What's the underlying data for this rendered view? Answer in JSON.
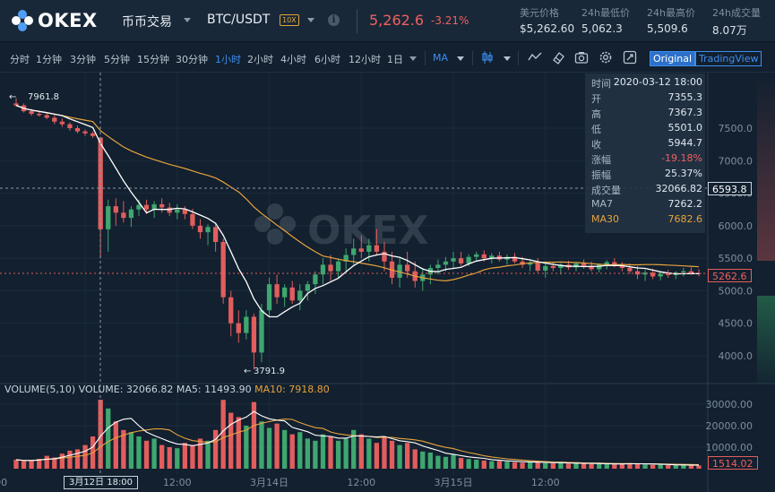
{
  "header": {
    "logo_text": "OKEX",
    "mode": "币币交易",
    "pair": "BTC/USDT",
    "leverage": "10X",
    "last_price": "5,262.6",
    "change_pct": "-3.21%",
    "stats": [
      {
        "label": "美元价格",
        "value": "$5,262.60"
      },
      {
        "label": "24h最低价",
        "value": "5,062.3"
      },
      {
        "label": "24h最高价",
        "value": "5,509.6"
      },
      {
        "label": "24h成交量",
        "value": "8.07万"
      }
    ]
  },
  "toolbar": {
    "timeframes": [
      "分时",
      "1分钟",
      "3分钟",
      "5分钟",
      "15分钟",
      "30分钟",
      "1小时",
      "2小时",
      "4小时",
      "6小时",
      "12小时",
      "1日"
    ],
    "active_timeframe": "1小时",
    "indicator": "MA",
    "view_original": "Original",
    "view_tradingview": "TradingView",
    "icons": [
      "candle-type-icon",
      "line-draw-icon",
      "eraser-icon",
      "camera-icon",
      "settings-icon",
      "fullscreen-icon"
    ]
  },
  "tooltip": {
    "rows": [
      {
        "k": "时间",
        "v": "2020-03-12 18:00"
      },
      {
        "k": "开",
        "v": "7355.3"
      },
      {
        "k": "高",
        "v": "7367.3"
      },
      {
        "k": "低",
        "v": "5501.0"
      },
      {
        "k": "收",
        "v": "5944.7"
      },
      {
        "k": "涨幅",
        "v": "-19.18%"
      },
      {
        "k": "振幅",
        "v": "25.37%"
      },
      {
        "k": "成交量",
        "v": "32066.82"
      },
      {
        "k": "MA7",
        "v": "7262.2"
      },
      {
        "k": "MA30",
        "v": "7682.6"
      }
    ]
  },
  "volume_label": {
    "main": "VOLUME(5,10)  VOLUME: 32066.82  MA5: 11493.90",
    "ma10": "MA10: 7918.80"
  },
  "price_tags": {
    "cursor_price": "6593.8",
    "last_price": "5262.6",
    "volume": "1514.02"
  },
  "annotations": {
    "high": "7961.8",
    "low": "3791.9"
  },
  "watermark": "OKEX",
  "date_badge": "3月12日 18:00",
  "chart_data": {
    "type": "candlestick",
    "y_ticks": [
      7500,
      7000,
      6500,
      6000,
      5500,
      5000,
      4500,
      4000
    ],
    "y_tick_labels": [
      "7500.0",
      "7000.0",
      "6500.0",
      "6000.0",
      "5500.0",
      "5000.0",
      "4500.0",
      "4000.0"
    ],
    "vol_ticks": [
      30000,
      20000,
      10000
    ],
    "vol_tick_labels": [
      "30000.00",
      "20000.00",
      "10000.00"
    ],
    "x_tick_labels": [
      "12:00",
      "3月13日",
      "12:00",
      "3月14日",
      "12:00",
      "3月15日",
      "12:00"
    ],
    "colors": {
      "up": "#3fa66f",
      "down": "#e25d5d",
      "ma7": "#ffffff",
      "ma30": "#e8a33c"
    },
    "candles": [
      [
        7880,
        7962,
        7830,
        7850
      ],
      [
        7850,
        7880,
        7740,
        7760
      ],
      [
        7760,
        7800,
        7690,
        7720
      ],
      [
        7720,
        7760,
        7680,
        7700
      ],
      [
        7700,
        7740,
        7640,
        7660
      ],
      [
        7660,
        7700,
        7560,
        7600
      ],
      [
        7600,
        7650,
        7520,
        7560
      ],
      [
        7560,
        7590,
        7460,
        7500
      ],
      [
        7500,
        7540,
        7420,
        7450
      ],
      [
        7450,
        7480,
        7380,
        7420
      ],
      [
        7420,
        7450,
        7350,
        7380
      ],
      [
        7355,
        7367,
        5501,
        5945
      ],
      [
        5945,
        6400,
        5600,
        6300
      ],
      [
        6300,
        6420,
        6000,
        6200
      ],
      [
        6200,
        6380,
        6050,
        6120
      ],
      [
        6120,
        6300,
        5980,
        6250
      ],
      [
        6250,
        6400,
        6150,
        6320
      ],
      [
        6320,
        6400,
        6180,
        6250
      ],
      [
        6250,
        6380,
        6120,
        6330
      ],
      [
        6330,
        6420,
        6200,
        6280
      ],
      [
        6280,
        6350,
        6150,
        6200
      ],
      [
        6200,
        6330,
        6100,
        6250
      ],
      [
        6250,
        6300,
        6100,
        6180
      ],
      [
        6180,
        6260,
        5950,
        6000
      ],
      [
        6000,
        6100,
        5800,
        5900
      ],
      [
        5900,
        6020,
        5700,
        5980
      ],
      [
        5980,
        6050,
        5600,
        5750
      ],
      [
        5750,
        5800,
        4800,
        4900
      ],
      [
        4900,
        5000,
        4300,
        4500
      ],
      [
        4500,
        4700,
        4200,
        4350
      ],
      [
        4350,
        4700,
        4250,
        4600
      ],
      [
        4600,
        4650,
        3792,
        4050
      ],
      [
        4050,
        4800,
        3900,
        4700
      ],
      [
        4700,
        5200,
        4600,
        5100
      ],
      [
        5100,
        5250,
        4800,
        4900
      ],
      [
        4900,
        5100,
        4750,
        5050
      ],
      [
        5050,
        5150,
        4800,
        4850
      ],
      [
        4850,
        5100,
        4700,
        5000
      ],
      [
        5000,
        5150,
        4850,
        5100
      ],
      [
        5100,
        5300,
        4950,
        5250
      ],
      [
        5250,
        5500,
        5100,
        5400
      ],
      [
        5400,
        5550,
        5150,
        5300
      ],
      [
        5300,
        5500,
        5200,
        5450
      ],
      [
        5450,
        5650,
        5300,
        5550
      ],
      [
        5550,
        5800,
        5400,
        5650
      ],
      [
        5650,
        5850,
        5500,
        5600
      ],
      [
        5600,
        5800,
        5450,
        5700
      ],
      [
        5700,
        5950,
        5550,
        5600
      ],
      [
        5600,
        5750,
        5300,
        5450
      ],
      [
        5450,
        5600,
        5100,
        5200
      ],
      [
        5200,
        5500,
        5050,
        5400
      ],
      [
        5400,
        5600,
        5200,
        5300
      ],
      [
        5300,
        5450,
        5050,
        5150
      ],
      [
        5150,
        5350,
        5000,
        5250
      ],
      [
        5250,
        5400,
        5100,
        5350
      ],
      [
        5350,
        5480,
        5250,
        5400
      ],
      [
        5400,
        5520,
        5300,
        5450
      ],
      [
        5450,
        5600,
        5350,
        5500
      ],
      [
        5500,
        5600,
        5380,
        5420
      ],
      [
        5420,
        5560,
        5380,
        5520
      ],
      [
        5520,
        5600,
        5450,
        5560
      ],
      [
        5560,
        5620,
        5450,
        5500
      ],
      [
        5500,
        5580,
        5420,
        5540
      ],
      [
        5540,
        5600,
        5450,
        5480
      ],
      [
        5480,
        5560,
        5400,
        5520
      ],
      [
        5520,
        5580,
        5420,
        5450
      ],
      [
        5450,
        5520,
        5350,
        5400
      ],
      [
        5400,
        5480,
        5300,
        5430
      ],
      [
        5430,
        5500,
        5280,
        5310
      ],
      [
        5310,
        5420,
        5200,
        5380
      ],
      [
        5380,
        5450,
        5300,
        5350
      ],
      [
        5350,
        5420,
        5250,
        5400
      ],
      [
        5400,
        5460,
        5320,
        5360
      ],
      [
        5360,
        5440,
        5300,
        5420
      ],
      [
        5420,
        5480,
        5340,
        5380
      ],
      [
        5380,
        5450,
        5300,
        5330
      ],
      [
        5330,
        5420,
        5280,
        5400
      ],
      [
        5400,
        5470,
        5330,
        5440
      ],
      [
        5440,
        5500,
        5360,
        5380
      ],
      [
        5380,
        5440,
        5300,
        5350
      ],
      [
        5350,
        5420,
        5260,
        5300
      ],
      [
        5300,
        5380,
        5180,
        5250
      ],
      [
        5250,
        5320,
        5150,
        5280
      ],
      [
        5280,
        5340,
        5180,
        5220
      ],
      [
        5220,
        5300,
        5160,
        5260
      ],
      [
        5260,
        5320,
        5200,
        5240
      ],
      [
        5240,
        5300,
        5180,
        5280
      ],
      [
        5280,
        5350,
        5220,
        5300
      ],
      [
        5300,
        5360,
        5240,
        5270
      ],
      [
        5270,
        5330,
        5220,
        5263
      ]
    ],
    "volumes": [
      4200,
      3500,
      3800,
      4600,
      6000,
      5200,
      7000,
      8400,
      9000,
      11000,
      15000,
      32066,
      28000,
      22000,
      18000,
      17000,
      15000,
      13000,
      14000,
      11000,
      10000,
      9500,
      12000,
      11000,
      14000,
      13000,
      18000,
      32000,
      26000,
      24000,
      20000,
      31000,
      22000,
      19000,
      21000,
      18000,
      16000,
      17000,
      14000,
      13000,
      16000,
      15000,
      13000,
      14000,
      18000,
      16000,
      14000,
      12000,
      15000,
      13000,
      11000,
      12000,
      9000,
      8000,
      7500,
      6000,
      5500,
      6500,
      5000,
      4500,
      4200,
      3800,
      3500,
      3600,
      3300,
      3000,
      2800,
      3200,
      3000,
      2600,
      2500,
      2800,
      2400,
      2600,
      2300,
      2200,
      2500,
      2100,
      2000,
      2300,
      2600,
      2400,
      2000,
      1800,
      1900,
      1700,
      1600,
      1800,
      1500,
      1514
    ]
  }
}
